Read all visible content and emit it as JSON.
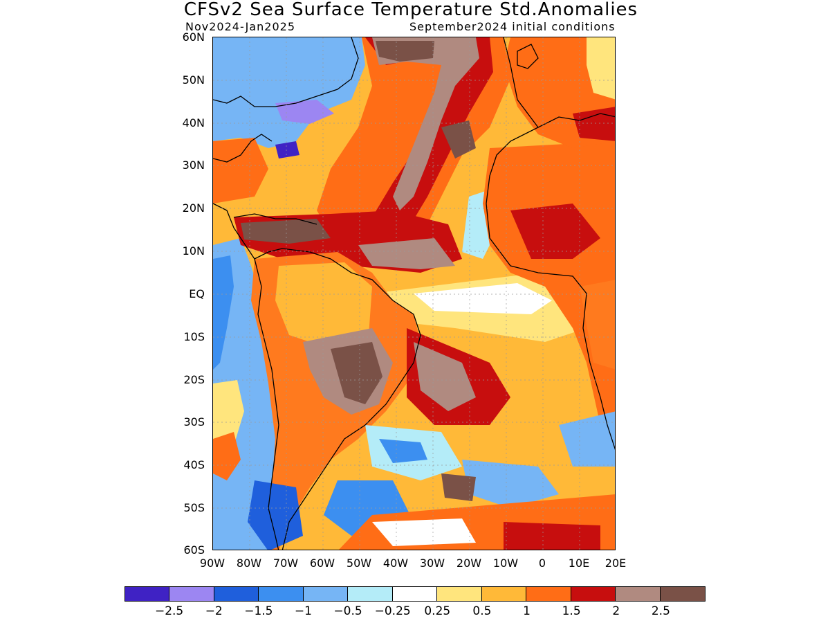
{
  "title": "CFSv2 Sea Surface Temperature Std.Anomalies",
  "period": "Nov2024-Jan2025",
  "init": "September2024 initial conditions",
  "lat_labels": [
    "60N",
    "50N",
    "40N",
    "30N",
    "20N",
    "10N",
    "EQ",
    "10S",
    "20S",
    "30S",
    "40S",
    "50S",
    "60S"
  ],
  "lon_labels": [
    "90W",
    "80W",
    "70W",
    "60W",
    "50W",
    "40W",
    "30W",
    "20W",
    "10W",
    "0",
    "10E",
    "20E"
  ],
  "colorbar": {
    "colors": [
      "#3f22c4",
      "#9c86f2",
      "#1f5fdc",
      "#3c8ff0",
      "#76b5f5",
      "#b4ecf8",
      "#ffffff",
      "#ffe57d",
      "#ffb938",
      "#ff6d16",
      "#c70e0e",
      "#b08a80",
      "#7a5147"
    ],
    "labels": [
      "−2.5",
      "−2",
      "−1.5",
      "−1",
      "−0.5",
      "−0.25",
      "0.25",
      "0.5",
      "1",
      "1.5",
      "2",
      "2.5"
    ]
  },
  "map": {
    "region": {
      "lon": [
        -90,
        20
      ],
      "lat": [
        -60,
        60
      ]
    },
    "ocean_bg": "#ffc040",
    "land_bg": "#ff7a1e"
  }
}
